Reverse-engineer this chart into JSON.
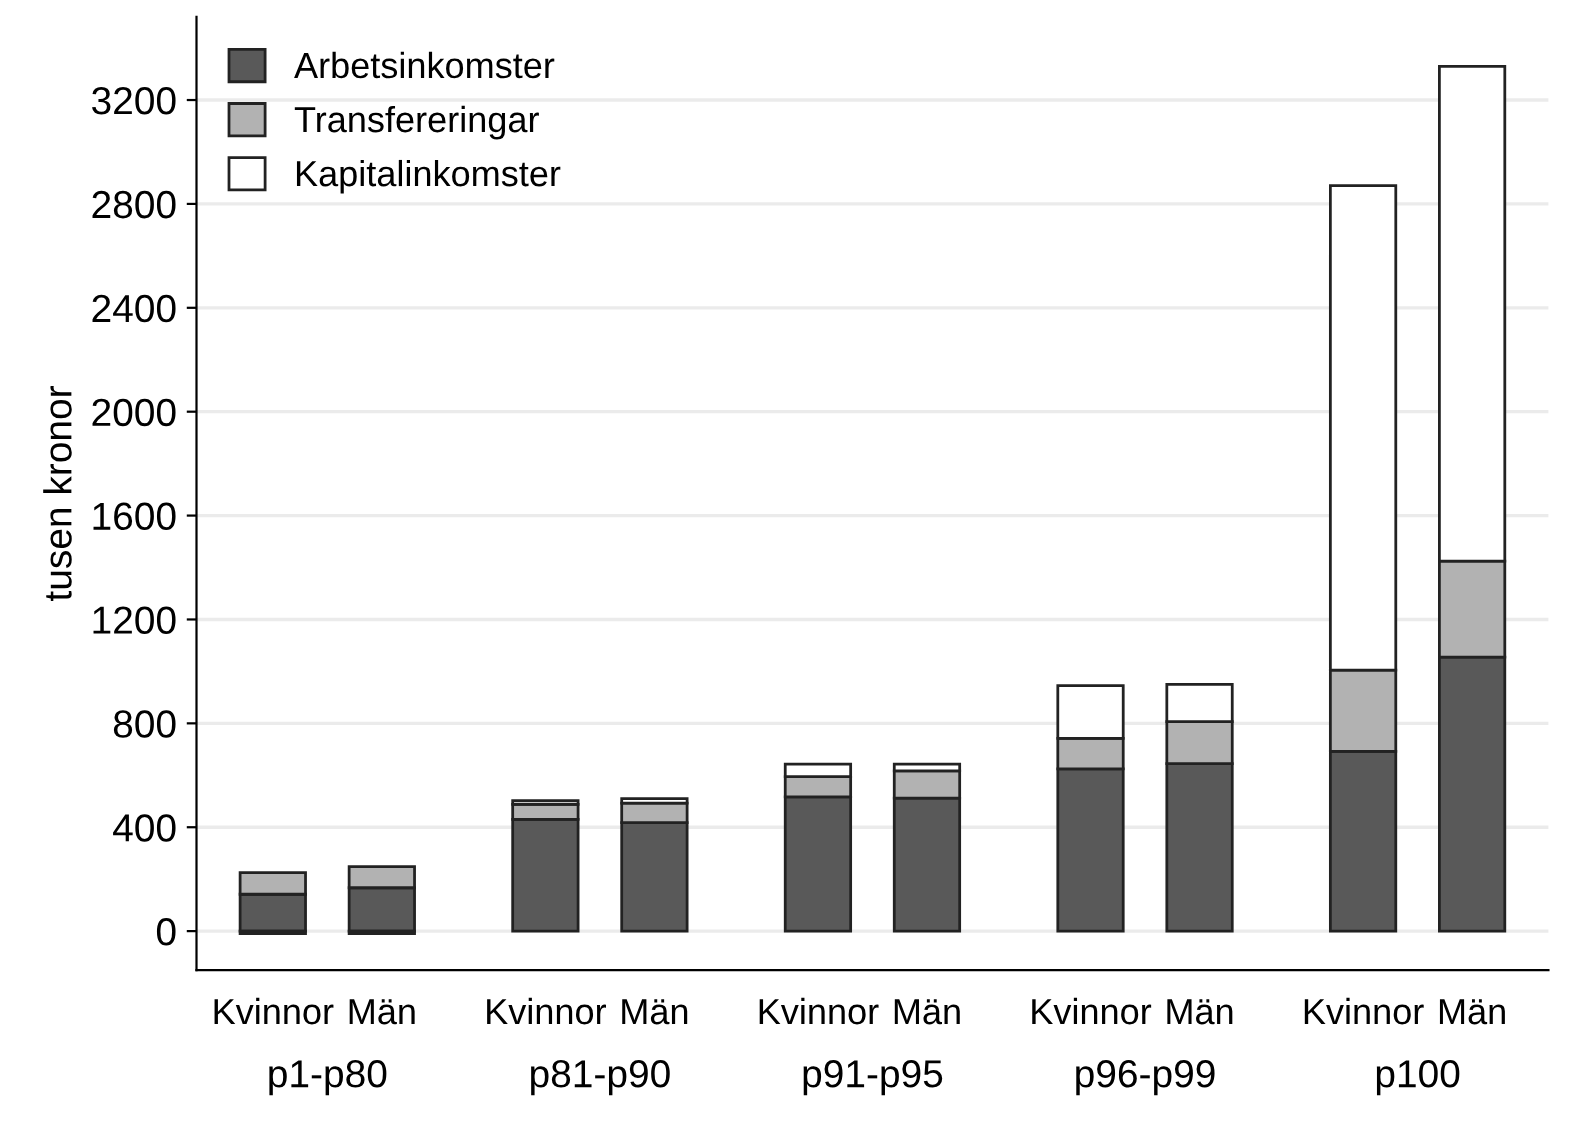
{
  "chart_data": {
    "type": "bar",
    "stacked": true,
    "ylabel": "tusen kronor",
    "categories": [
      "Kvinnor",
      "Män",
      "Kvinnor",
      "Män",
      "Kvinnor",
      "Män",
      "Kvinnor",
      "Män",
      "Kvinnor",
      "Män"
    ],
    "series": [
      {
        "name": "Arbetsinkomster",
        "color": "#595959",
        "values": [
          142,
          167,
          430,
          418,
          517,
          512,
          625,
          645,
          692,
          1055
        ]
      },
      {
        "name": "Transfereringar",
        "color": "#b2b2b2",
        "values": [
          83,
          81,
          58,
          75,
          78,
          105,
          117,
          162,
          313,
          370
        ]
      },
      {
        "name": "Kapitalinkomster",
        "color": "#ffffff",
        "values": [
          -10,
          -10,
          14,
          17,
          48,
          26,
          203,
          143,
          1865,
          1905
        ]
      }
    ],
    "annotations": [
      "p1-p80",
      "p81-p90",
      "p91-p95",
      "p96-p99",
      "p100"
    ],
    "ylim": [
      -150,
      3520
    ],
    "yticks": [
      0,
      400,
      800,
      1200,
      1600,
      2000,
      2400,
      2800,
      3200
    ],
    "grid": "y",
    "legend": "top left"
  }
}
